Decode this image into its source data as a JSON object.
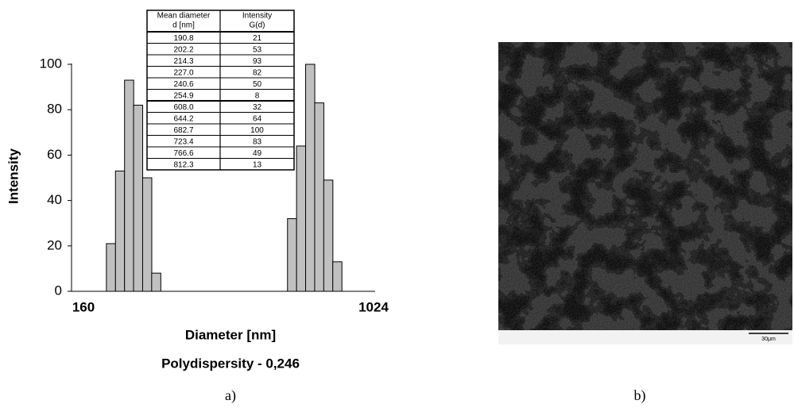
{
  "chart_data": {
    "type": "bar",
    "x_label": "Diameter [nm]",
    "y_label": "Intensity",
    "annotation": "Polydispersity - 0,246",
    "x": [
      190.8,
      202.2,
      214.3,
      227.0,
      240.6,
      254.9,
      608.0,
      644.2,
      682.7,
      723.4,
      766.6,
      812.3
    ],
    "values": [
      21,
      53,
      93,
      82,
      50,
      8,
      32,
      64,
      100,
      83,
      49,
      13
    ],
    "color": "#c0c0c0",
    "xscale": "log",
    "xlim": [
      160,
      1024
    ],
    "xticks": [
      160,
      1024
    ],
    "ylim": [
      0,
      100
    ],
    "yticks": [
      0,
      20,
      40,
      60,
      80,
      100
    ],
    "grid": false
  },
  "table": {
    "columns": [
      [
        "Mean diameter",
        "d [nm]"
      ],
      [
        "Intensity",
        "G(d)"
      ]
    ],
    "rows": [
      [
        "190.8",
        "21"
      ],
      [
        "202.2",
        "53"
      ],
      [
        "214.3",
        "93"
      ],
      [
        "227.0",
        "82"
      ],
      [
        "240.6",
        "50"
      ],
      [
        "254.9",
        "8"
      ],
      [
        "608.0",
        "32"
      ],
      [
        "644.2",
        "64"
      ],
      [
        "682.7",
        "100"
      ],
      [
        "723.4",
        "83"
      ],
      [
        "766.6",
        "49"
      ],
      [
        "812.3",
        "13"
      ]
    ]
  },
  "image": {
    "scale_bar": "30μm"
  },
  "captions": [
    "a)",
    "b)"
  ]
}
